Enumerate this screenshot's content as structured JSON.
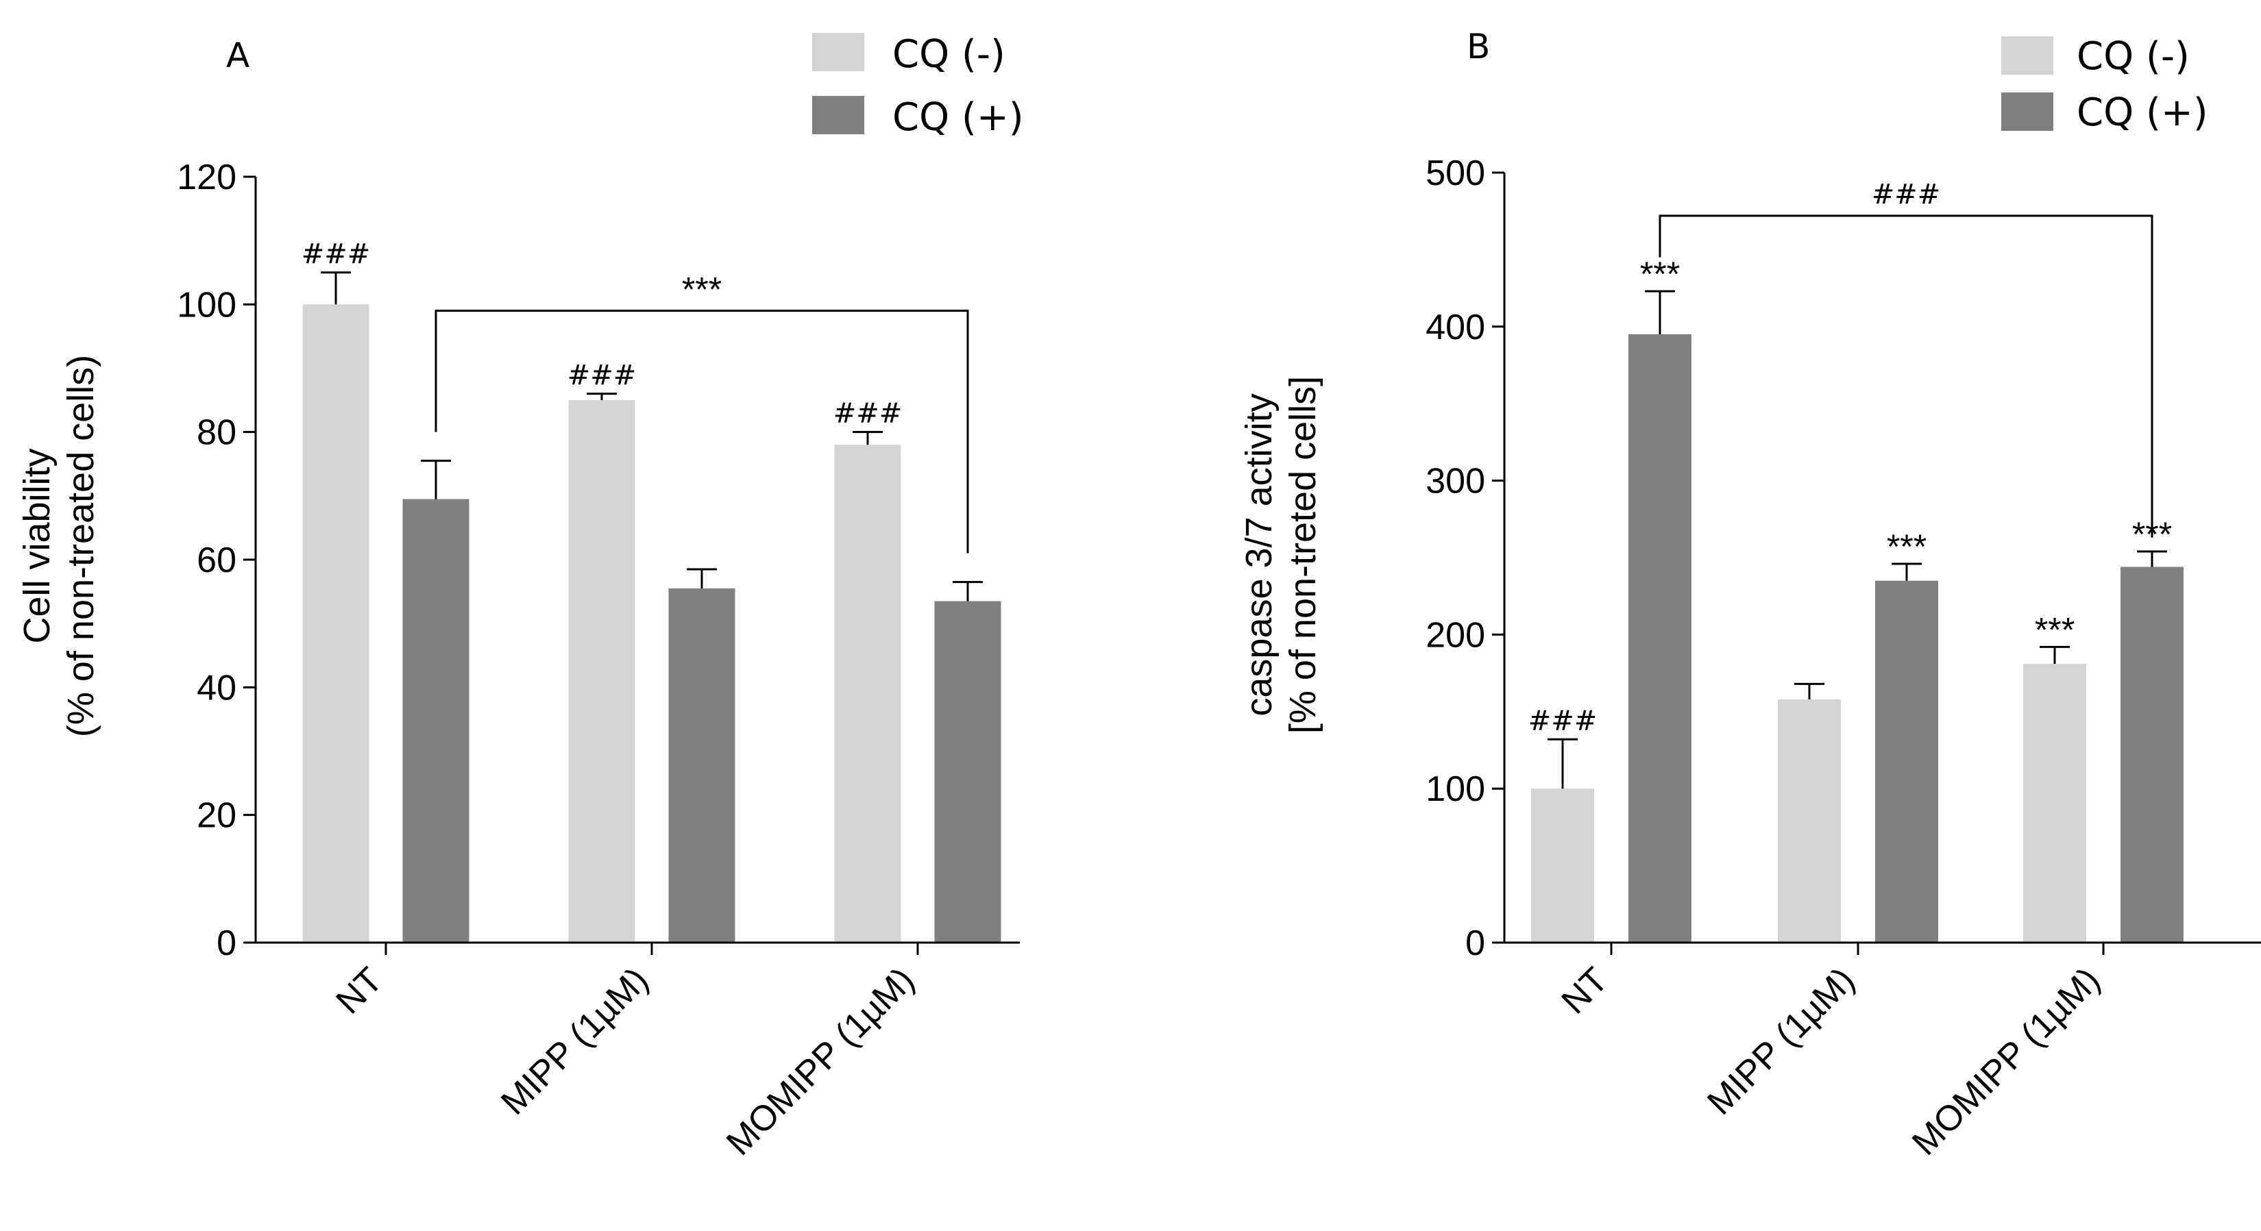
{
  "colors": {
    "cq_minus": "#d4d4d4",
    "cq_plus": "#808080",
    "axis": "#000000"
  },
  "chart_data": [
    {
      "panel": "A",
      "type": "bar",
      "ylabel_line1": "Cell viability",
      "ylabel_line2": "(% of non-treated cells)",
      "ylim": [
        0,
        120
      ],
      "yticks": [
        0,
        20,
        40,
        60,
        80,
        100,
        120
      ],
      "categories": [
        "NT",
        "MIPP (1µM)",
        "MOMIPP (1µM)"
      ],
      "legend": [
        "CQ (-)",
        "CQ (+)"
      ],
      "series": [
        {
          "name": "CQ (-)",
          "values": [
            100,
            85,
            78
          ],
          "errors": [
            5,
            1,
            2
          ],
          "annotations": [
            "###",
            "###",
            "###"
          ]
        },
        {
          "name": "CQ (+)",
          "values": [
            69.5,
            55.5,
            53.5
          ],
          "errors": [
            6,
            3,
            3
          ],
          "annotations": [
            "",
            "",
            ""
          ]
        }
      ],
      "bracket": {
        "from": "NT / CQ (+)",
        "to": "MOMIPP (1µM) / CQ (+)",
        "label": "***"
      }
    },
    {
      "panel": "B",
      "type": "bar",
      "ylabel_line1": "caspase 3/7 activity",
      "ylabel_line2": "[% of non-treted cells]",
      "ylim": [
        0,
        500
      ],
      "yticks": [
        0,
        100,
        200,
        300,
        400,
        500
      ],
      "categories": [
        "NT",
        "MIPP (1µM)",
        "MOMIPP (1µM)"
      ],
      "legend": [
        "CQ (-)",
        "CQ (+)"
      ],
      "series": [
        {
          "name": "CQ (-)",
          "values": [
            100,
            158,
            181
          ],
          "errors": [
            32,
            10,
            11
          ],
          "annotations": [
            "###",
            "",
            "***"
          ]
        },
        {
          "name": "CQ (+)",
          "values": [
            395,
            235,
            244
          ],
          "errors": [
            28,
            11,
            10
          ],
          "annotations": [
            "***",
            "***",
            "***"
          ]
        }
      ],
      "bracket": {
        "from": "NT / CQ (+)",
        "to": "MOMIPP (1µM) / CQ (+)",
        "label": "###"
      }
    }
  ]
}
